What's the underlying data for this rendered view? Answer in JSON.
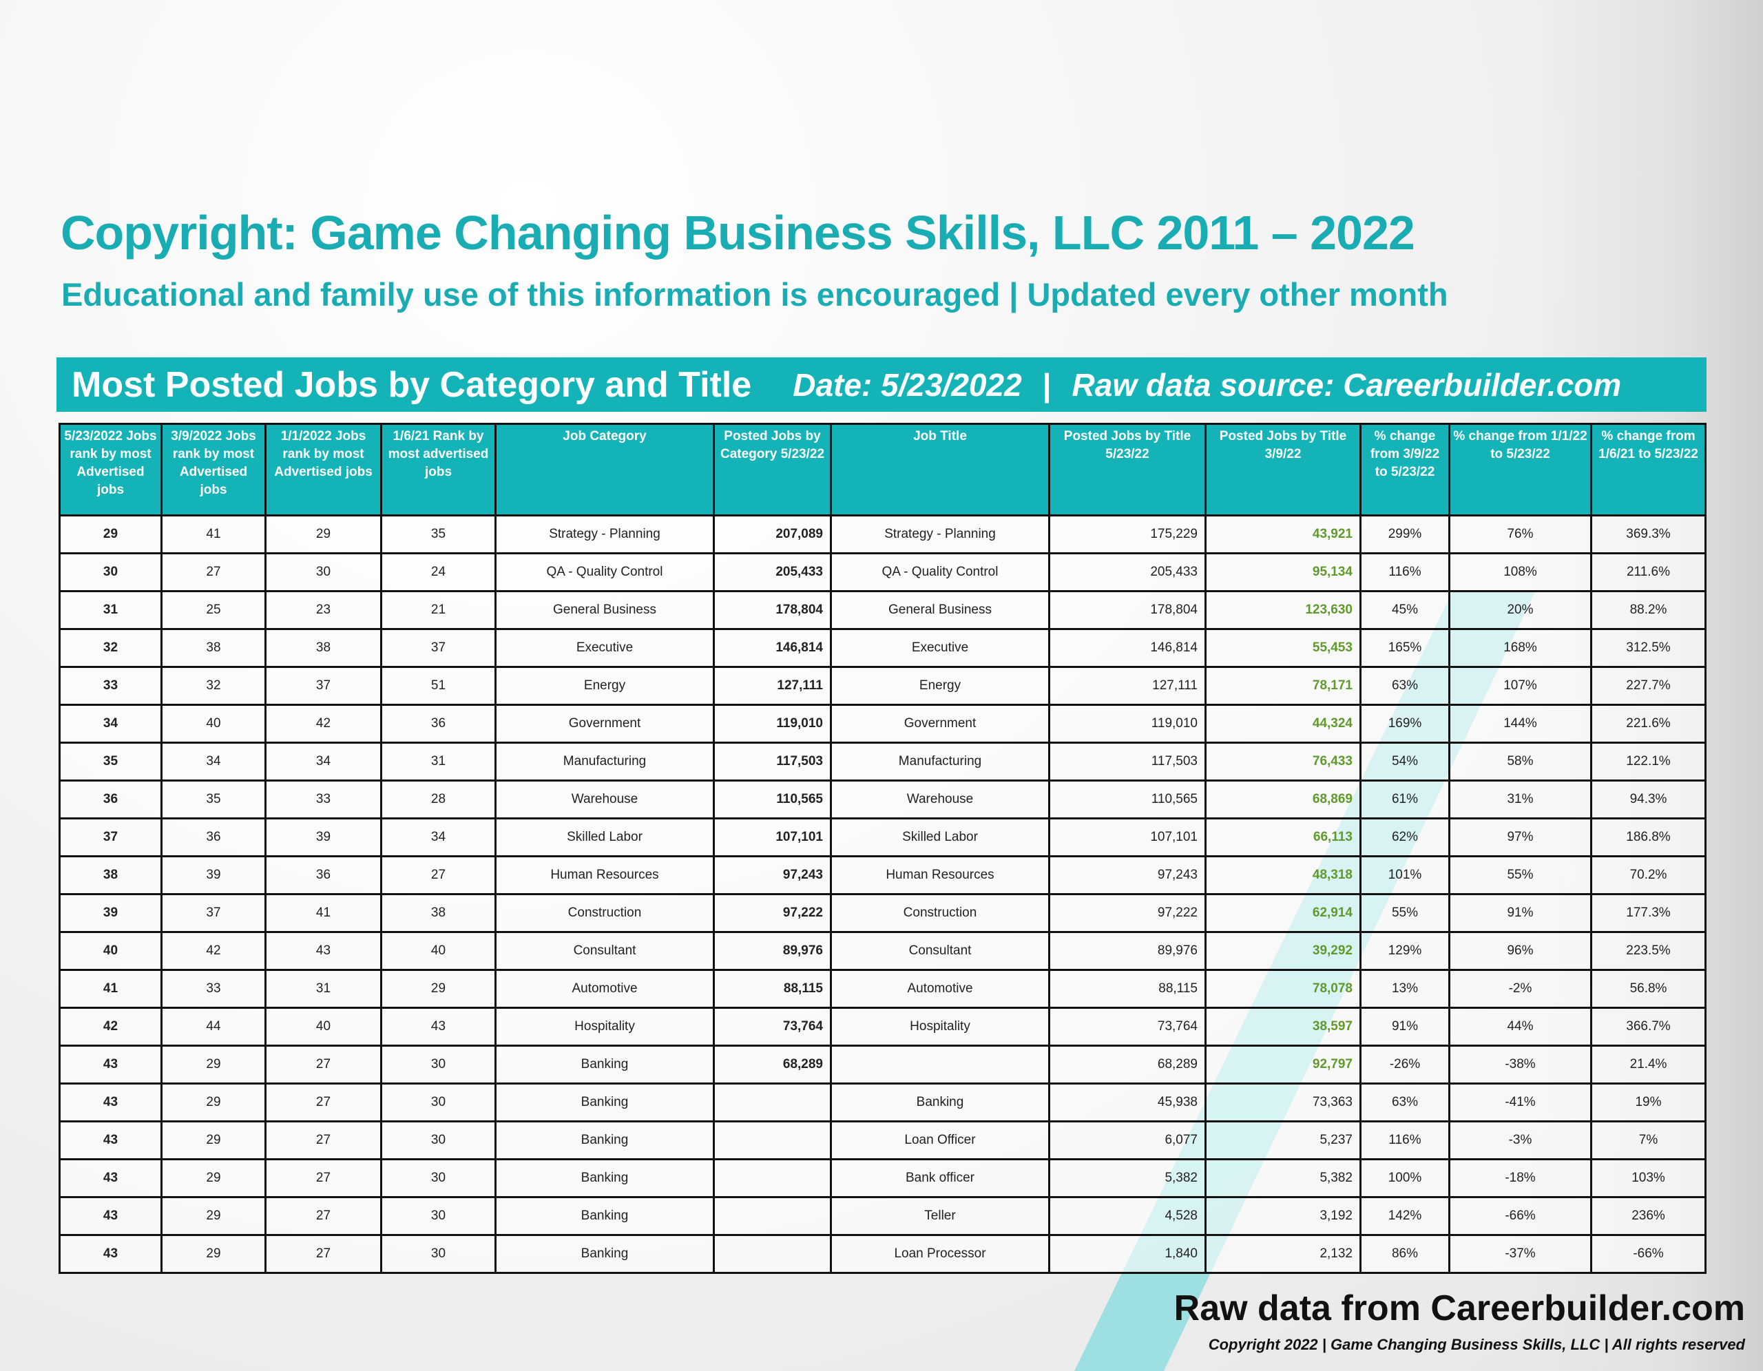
{
  "header": {
    "title": "Copyright: Game Changing Business Skills, LLC 2011 – 2022",
    "subtitle": "Educational and family use of this information is encouraged | Updated every other month"
  },
  "banner": {
    "title": "Most Posted Jobs by Category and Title",
    "date": "Date: 5/23/2022",
    "separator": "|",
    "source": "Raw data source: Careerbuilder.com"
  },
  "table": {
    "columns": [
      "5/23/2022 Jobs rank by most Advertised jobs",
      "3/9/2022 Jobs rank by most Advertised jobs",
      "1/1/2022 Jobs rank by most Advertised jobs",
      "1/6/21 Rank by most advertised jobs",
      "Job Category",
      "Posted Jobs by Category 5/23/22",
      "Job Title",
      "Posted Jobs by Title 5/23/22",
      "Posted Jobs by Title 3/9/22",
      "% change from 3/9/22 to 5/23/22",
      "% change from 1/1/22 to 5/23/22",
      "% change from 1/6/21 to 5/23/22"
    ],
    "rows": [
      [
        "29",
        "41",
        "29",
        "35",
        "Strategy - Planning",
        "207,089",
        "Strategy - Planning",
        "175,229",
        "43,921",
        "299%",
        "76%",
        "369.3%"
      ],
      [
        "30",
        "27",
        "30",
        "24",
        "QA - Quality Control",
        "205,433",
        "QA - Quality Control",
        "205,433",
        "95,134",
        "116%",
        "108%",
        "211.6%"
      ],
      [
        "31",
        "25",
        "23",
        "21",
        "General Business",
        "178,804",
        "General Business",
        "178,804",
        "123,630",
        "45%",
        "20%",
        "88.2%"
      ],
      [
        "32",
        "38",
        "38",
        "37",
        "Executive",
        "146,814",
        "Executive",
        "146,814",
        "55,453",
        "165%",
        "168%",
        "312.5%"
      ],
      [
        "33",
        "32",
        "37",
        "51",
        "Energy",
        "127,111",
        "Energy",
        "127,111",
        "78,171",
        "63%",
        "107%",
        "227.7%"
      ],
      [
        "34",
        "40",
        "42",
        "36",
        "Government",
        "119,010",
        "Government",
        "119,010",
        "44,324",
        "169%",
        "144%",
        "221.6%"
      ],
      [
        "35",
        "34",
        "34",
        "31",
        "Manufacturing",
        "117,503",
        "Manufacturing",
        "117,503",
        "76,433",
        "54%",
        "58%",
        "122.1%"
      ],
      [
        "36",
        "35",
        "33",
        "28",
        "Warehouse",
        "110,565",
        "Warehouse",
        "110,565",
        "68,869",
        "61%",
        "31%",
        "94.3%"
      ],
      [
        "37",
        "36",
        "39",
        "34",
        "Skilled Labor",
        "107,101",
        "Skilled Labor",
        "107,101",
        "66,113",
        "62%",
        "97%",
        "186.8%"
      ],
      [
        "38",
        "39",
        "36",
        "27",
        "Human Resources",
        "97,243",
        "Human Resources",
        "97,243",
        "48,318",
        "101%",
        "55%",
        "70.2%"
      ],
      [
        "39",
        "37",
        "41",
        "38",
        "Construction",
        "97,222",
        "Construction",
        "97,222",
        "62,914",
        "55%",
        "91%",
        "177.3%"
      ],
      [
        "40",
        "42",
        "43",
        "40",
        "Consultant",
        "89,976",
        "Consultant",
        "89,976",
        "39,292",
        "129%",
        "96%",
        "223.5%"
      ],
      [
        "41",
        "33",
        "31",
        "29",
        "Automotive",
        "88,115",
        "Automotive",
        "88,115",
        "78,078",
        "13%",
        "-2%",
        "56.8%"
      ],
      [
        "42",
        "44",
        "40",
        "43",
        "Hospitality",
        "73,764",
        "Hospitality",
        "73,764",
        "38,597",
        "91%",
        "44%",
        "366.7%"
      ],
      [
        "43",
        "29",
        "27",
        "30",
        "Banking",
        "68,289",
        null,
        "68,289",
        "92,797",
        "-26%",
        "-38%",
        "21.4%"
      ],
      [
        "43",
        "29",
        "27",
        "30",
        "Banking",
        null,
        "Banking",
        "45,938",
        "73,363",
        "63%",
        "-41%",
        "19%"
      ],
      [
        "43",
        "29",
        "27",
        "30",
        "Banking",
        null,
        "Loan Officer",
        "6,077",
        "5,237",
        "116%",
        "-3%",
        "7%"
      ],
      [
        "43",
        "29",
        "27",
        "30",
        "Banking",
        null,
        "Bank officer",
        "5,382",
        "5,382",
        "100%",
        "-18%",
        "103%"
      ],
      [
        "43",
        "29",
        "27",
        "30",
        "Banking",
        null,
        "Teller",
        "4,528",
        "3,192",
        "142%",
        "-66%",
        "236%"
      ],
      [
        "43",
        "29",
        "27",
        "30",
        "Banking",
        null,
        "Loan Processor",
        "1,840",
        "2,132",
        "86%",
        "-37%",
        "-66%"
      ]
    ]
  },
  "footer": {
    "source": "Raw data from Careerbuilder.com",
    "copyright": "Copyright 2022 | Game Changing Business Skills, LLC | All rights reserved"
  }
}
